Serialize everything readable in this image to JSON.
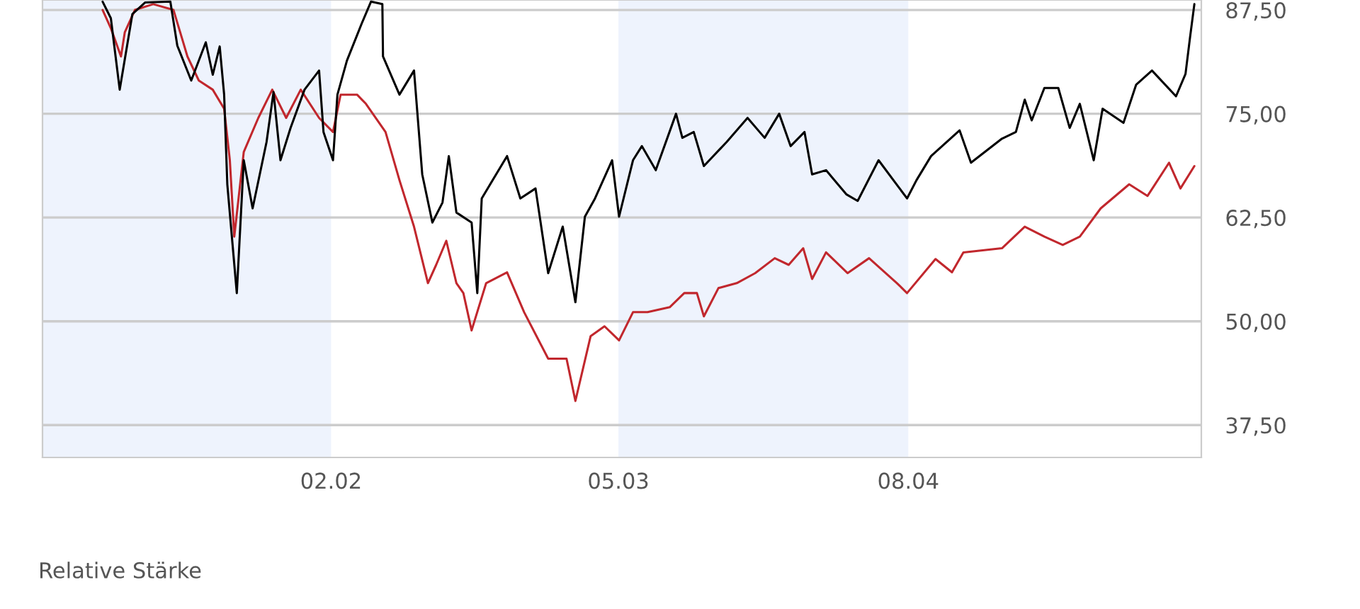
{
  "chart_data": {
    "type": "line",
    "xlim": [
      "2000-11-02",
      "2005-11-07"
    ],
    "ylim": [
      33.6,
      88.7
    ],
    "xticks": [
      {
        "value": "2002-02-01",
        "label": "02.02"
      },
      {
        "value": "2003-05-01",
        "label": "05.03"
      },
      {
        "value": "2004-08-01",
        "label": "08.04"
      }
    ],
    "yticks": [
      {
        "value": 37.5,
        "label": "37,50"
      },
      {
        "value": 50,
        "label": "50,00"
      },
      {
        "value": 62.5,
        "label": "62,50"
      },
      {
        "value": 75,
        "label": "75,00"
      },
      {
        "value": 87.5,
        "label": "87,50"
      }
    ],
    "grid": "y",
    "marker": "none",
    "line_style": "solid",
    "bands": [
      {
        "axis": "x",
        "from": "2000-11-02",
        "to": "2002-02-01",
        "color": "#eef3fd"
      },
      {
        "axis": "x",
        "from": "2003-05-01",
        "to": "2004-08-01",
        "color": "#eef3fd"
      }
    ],
    "annotations": [
      "Relative Stärke"
    ],
    "series": [
      {
        "color": "#000000",
        "x": [
          "2001-02-05",
          "2001-02-18",
          "2001-03-04",
          "2001-03-24",
          "2001-04-13",
          "2001-05-23",
          "2001-06-03",
          "2001-06-25",
          "2001-07-18",
          "2001-07-29",
          "2001-08-09",
          "2001-08-16",
          "2001-08-21",
          "2001-09-05",
          "2001-09-16",
          "2001-09-30",
          "2001-10-22",
          "2001-11-02",
          "2001-11-13",
          "2001-11-29",
          "2001-12-21",
          "2002-01-13",
          "2002-01-20",
          "2002-02-04",
          "2002-02-11",
          "2002-02-26",
          "2002-03-21",
          "2002-04-05",
          "2002-04-23",
          "2002-04-24",
          "2002-05-20",
          "2002-06-12",
          "2002-06-25",
          "2002-07-11",
          "2002-07-27",
          "2002-08-06",
          "2002-08-18",
          "2002-09-11",
          "2002-09-20",
          "2002-09-27",
          "2002-11-06",
          "2002-11-27",
          "2002-12-21",
          "2003-01-10",
          "2003-02-02",
          "2003-02-22",
          "2003-03-09",
          "2003-03-25",
          "2003-04-21",
          "2003-05-02",
          "2003-05-24",
          "2003-06-07",
          "2003-06-29",
          "2003-07-31",
          "2003-08-10",
          "2003-08-28",
          "2003-09-13",
          "2003-10-19",
          "2003-11-21",
          "2003-12-18",
          "2004-01-10",
          "2004-01-28",
          "2004-02-19",
          "2004-03-02",
          "2004-03-24",
          "2004-04-25",
          "2004-05-13",
          "2004-06-15",
          "2004-07-30",
          "2004-08-14",
          "2004-09-06",
          "2004-10-21",
          "2004-11-08",
          "2004-12-27",
          "2005-01-18",
          "2005-02-01",
          "2005-02-12",
          "2005-03-04",
          "2005-03-26",
          "2005-04-13",
          "2005-04-29",
          "2005-05-21",
          "2005-06-04",
          "2005-07-07",
          "2005-07-27",
          "2005-08-21",
          "2005-09-28",
          "2005-10-13",
          "2005-10-20",
          "2005-10-27"
        ],
        "values": [
          88.5,
          86.5,
          77.9,
          87.0,
          88.4,
          88.5,
          83.2,
          79.0,
          83.6,
          79.7,
          83.1,
          77.3,
          66.5,
          53.4,
          69.4,
          63.6,
          71.6,
          77.6,
          69.4,
          73.3,
          77.9,
          80.2,
          72.8,
          69.4,
          77.3,
          81.4,
          85.8,
          88.5,
          88.2,
          81.9,
          77.3,
          80.2,
          67.7,
          61.9,
          64.3,
          69.9,
          63.1,
          61.9,
          53.4,
          64.8,
          69.9,
          64.8,
          66.0,
          55.8,
          61.4,
          52.3,
          62.6,
          64.8,
          69.4,
          62.6,
          69.4,
          71.1,
          68.2,
          75.0,
          72.1,
          72.8,
          68.7,
          71.6,
          74.5,
          72.1,
          75.0,
          71.1,
          72.8,
          67.7,
          68.2,
          65.3,
          64.5,
          69.4,
          64.8,
          67.0,
          69.9,
          73.0,
          69.1,
          72.0,
          72.8,
          76.7,
          74.2,
          78.1,
          78.1,
          73.3,
          76.2,
          69.4,
          75.6,
          73.9,
          78.5,
          80.2,
          77.1,
          79.8,
          84.1,
          88.2
        ]
      },
      {
        "color": "#c1272d",
        "x": [
          "2001-02-05",
          "2001-02-18",
          "2001-03-06",
          "2001-03-12",
          "2001-03-28",
          "2001-04-26",
          "2001-05-28",
          "2001-06-19",
          "2001-07-07",
          "2001-07-29",
          "2001-08-16",
          "2001-08-25",
          "2001-09-01",
          "2001-09-16",
          "2001-10-09",
          "2001-10-31",
          "2001-11-22",
          "2001-12-15",
          "2002-01-13",
          "2002-02-04",
          "2002-02-16",
          "2002-03-14",
          "2002-03-28",
          "2002-04-28",
          "2002-05-20",
          "2002-06-12",
          "2002-07-04",
          "2002-07-17",
          "2002-08-02",
          "2002-08-18",
          "2002-08-29",
          "2002-09-11",
          "2002-10-04",
          "2002-11-06",
          "2002-12-03",
          "2003-01-10",
          "2003-02-08",
          "2003-02-22",
          "2003-03-18",
          "2003-04-09",
          "2003-05-02",
          "2003-05-24",
          "2003-06-16",
          "2003-07-21",
          "2003-08-13",
          "2003-09-02",
          "2003-09-13",
          "2003-10-06",
          "2003-11-04",
          "2003-12-03",
          "2004-01-03",
          "2004-01-25",
          "2004-02-17",
          "2004-03-02",
          "2004-03-24",
          "2004-04-27",
          "2004-05-31",
          "2004-07-14",
          "2004-07-30",
          "2004-09-13",
          "2004-10-09",
          "2004-10-27",
          "2004-12-27",
          "2005-02-01",
          "2005-03-04",
          "2005-04-02",
          "2005-04-29",
          "2005-06-01",
          "2005-07-16",
          "2005-08-14",
          "2005-09-17",
          "2005-10-05",
          "2005-10-27"
        ],
        "values": [
          87.5,
          85.3,
          81.9,
          84.8,
          87.5,
          88.2,
          87.5,
          81.9,
          79.0,
          77.9,
          75.6,
          69.4,
          60.2,
          70.4,
          74.5,
          77.9,
          74.5,
          77.9,
          74.5,
          72.8,
          77.3,
          77.3,
          76.2,
          72.8,
          67.0,
          61.4,
          54.6,
          56.8,
          59.7,
          54.6,
          53.4,
          48.9,
          54.6,
          55.9,
          51.1,
          45.5,
          45.5,
          40.4,
          48.2,
          49.4,
          47.7,
          51.1,
          51.1,
          51.7,
          53.4,
          53.4,
          50.6,
          54.0,
          54.6,
          55.8,
          57.6,
          56.8,
          58.8,
          55.1,
          58.3,
          55.8,
          57.6,
          54.6,
          53.4,
          57.5,
          55.9,
          58.3,
          58.8,
          61.4,
          60.2,
          59.2,
          60.2,
          63.6,
          66.5,
          65.1,
          69.1,
          66.0,
          68.7
        ]
      }
    ]
  }
}
